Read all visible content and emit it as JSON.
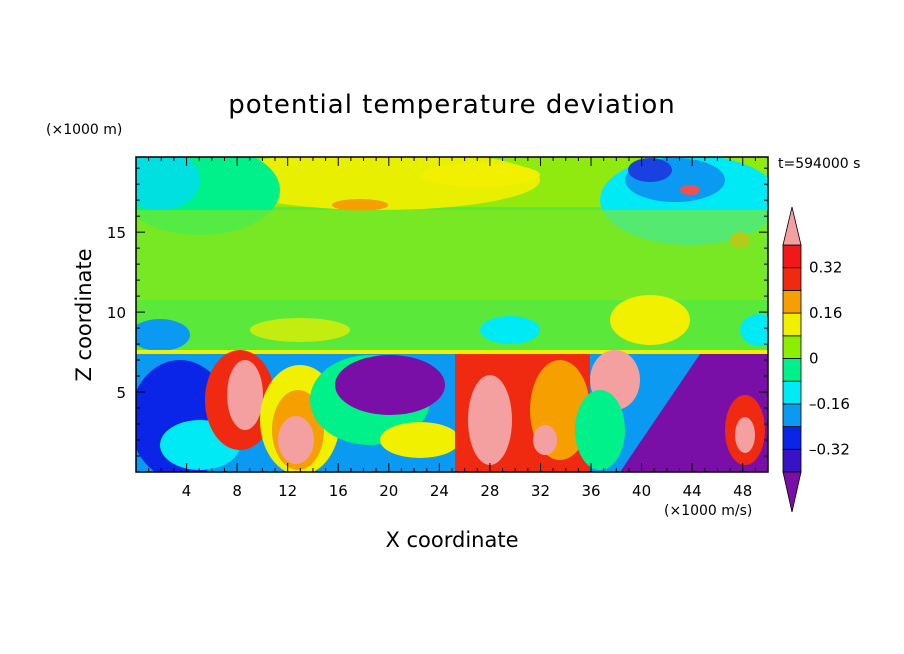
{
  "chart_data": {
    "type": "heatmap",
    "title": "potential temperature deviation",
    "xlabel": "X coordinate",
    "ylabel": "Z coordinate",
    "x_unit": "(×1000 m/s)",
    "y_unit": "(×1000 m)",
    "time_label": "t=594000 s",
    "xlim": [
      0,
      50
    ],
    "ylim": [
      0,
      19.7
    ],
    "x_ticks": [
      4,
      8,
      12,
      16,
      20,
      24,
      28,
      32,
      36,
      40,
      44,
      48
    ],
    "y_ticks": [
      5,
      10,
      15
    ],
    "colorbar": {
      "levels": [
        -0.4,
        -0.32,
        -0.24,
        -0.16,
        -0.08,
        0,
        0.08,
        0.16,
        0.24,
        0.32,
        0.4
      ],
      "labels": [
        "0.32",
        "0.16",
        "0",
        "–0.16",
        "–0.32"
      ],
      "label_values": [
        0.32,
        0.16,
        0,
        -0.16,
        -0.32
      ],
      "colors": [
        "#7a0fa8",
        "#3a12c6",
        "#0a24e8",
        "#0a9af2",
        "#00eaf5",
        "#00f08a",
        "#8af000",
        "#f0f000",
        "#f5a000",
        "#f02a10",
        "#f01818",
        "#f5a0a0"
      ],
      "overflow_colors": {
        "low": "#7a0fa8",
        "high": "#f5a0a0"
      }
    },
    "regions": [
      {
        "zone": "upper layer (z > 7.8)",
        "dominant": "0 to 0.08 (green)",
        "notes": "yellow-green bands near z≈17-19 across x≈18-32; cyan/blue near top-right (x≈38-50)"
      },
      {
        "zone": "lower layer (z < 7.8)",
        "dominant": "strong anomalies",
        "notes": "warm core (pink/red) at x≈26-36 and x≈38-40; cold core (purple) at x≈20-24 and x≈38-50"
      }
    ]
  }
}
